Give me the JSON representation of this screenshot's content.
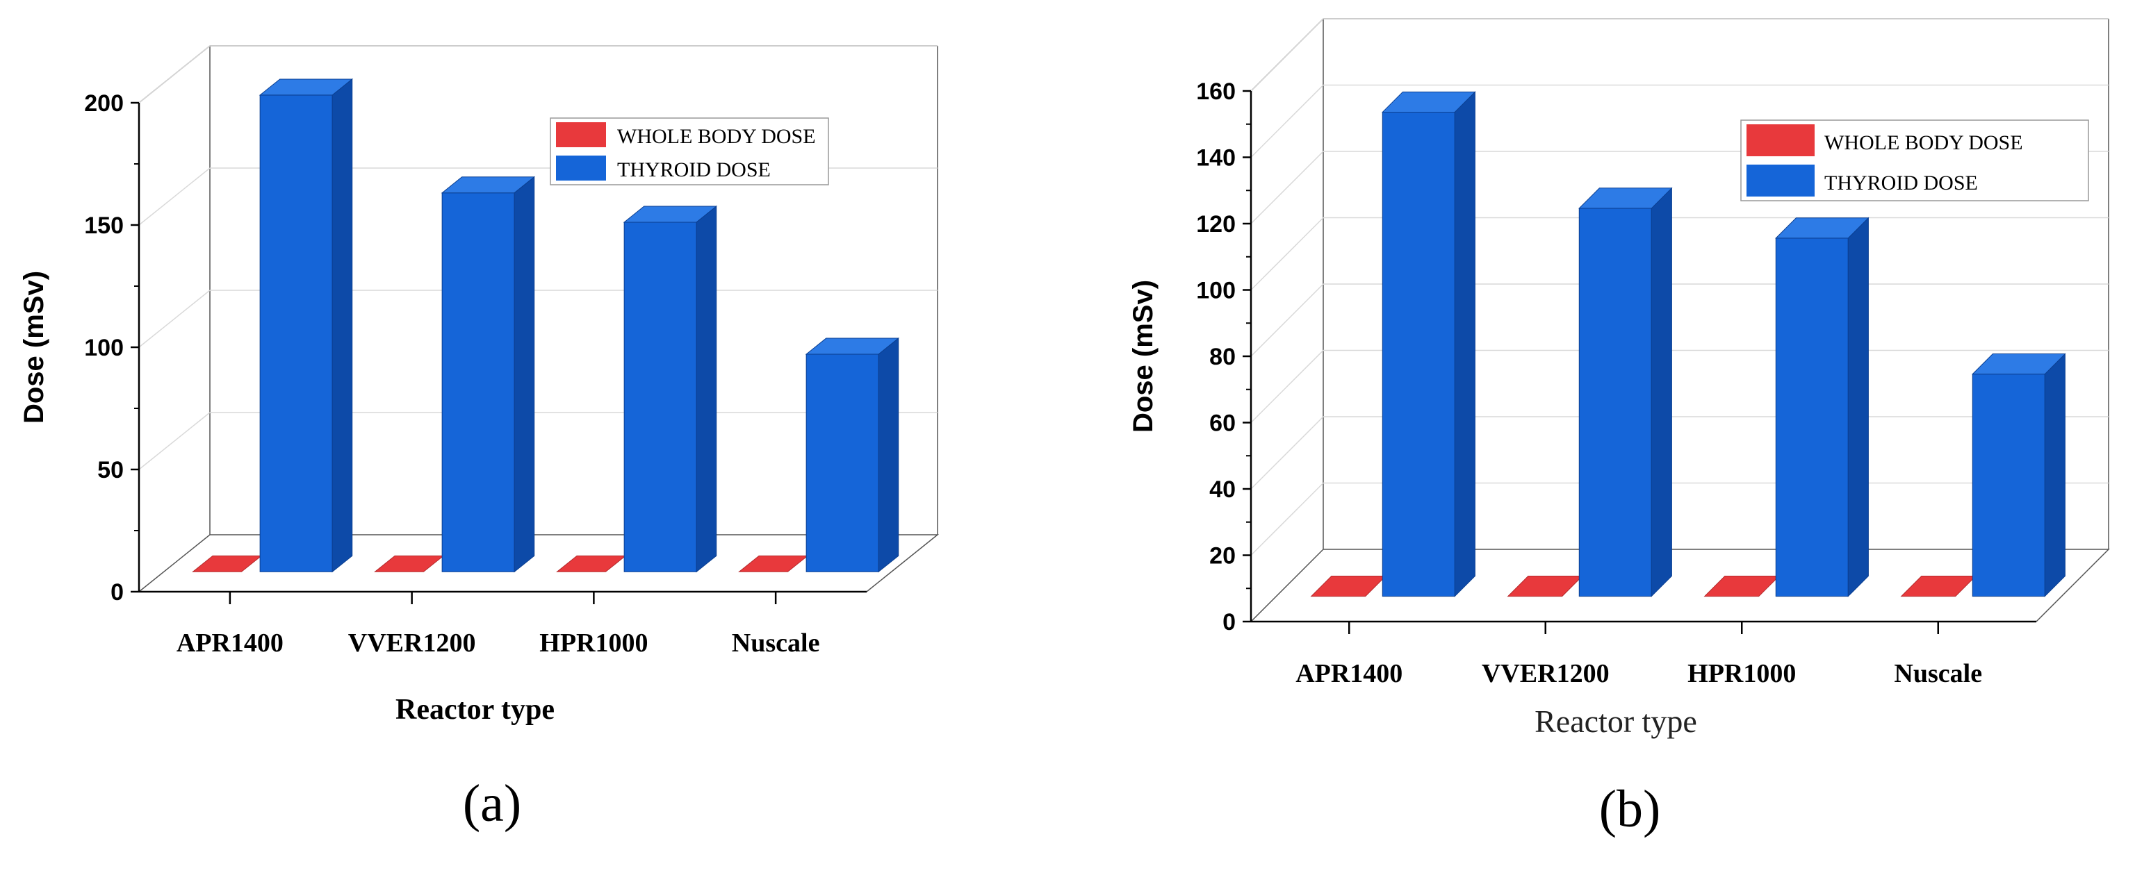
{
  "colors": {
    "whole_body": "#e8393c",
    "thyroid": "#1565d8",
    "thyroid_side": "#0d4aa8",
    "thyroid_top": "#2d7be6",
    "grid": "#d9d9d9",
    "axis": "#000000"
  },
  "chart_data": [
    {
      "type": "bar",
      "panel_label": "(a)",
      "categories": [
        "APR1400",
        "VVER1200",
        "HPR1000",
        "Nuscale"
      ],
      "series": [
        {
          "name": "WHOLE BODY DOSE",
          "values": [
            0,
            0,
            0,
            0
          ]
        },
        {
          "name": "THYROID DOSE",
          "values": [
            195,
            155,
            143,
            89
          ]
        }
      ],
      "xlabel": "Reactor type",
      "ylabel": "Dose (mSv)",
      "ylim": [
        0,
        200
      ],
      "yticks": [
        "0",
        "50",
        "100",
        "150",
        "200"
      ],
      "grid": true,
      "legend_position": "top-right"
    },
    {
      "type": "bar",
      "panel_label": "(b)",
      "categories": [
        "APR1400",
        "VVER1200",
        "HPR1000",
        "Nuscale"
      ],
      "series": [
        {
          "name": "WHOLE BODY DOSE",
          "values": [
            0,
            0,
            0,
            0
          ]
        },
        {
          "name": "THYROID DOSE",
          "values": [
            146,
            117,
            108,
            67
          ]
        }
      ],
      "xlabel": "Reactor type",
      "ylabel": "Dose (mSv)",
      "ylim": [
        0,
        160
      ],
      "yticks": [
        "0",
        "20",
        "40",
        "60",
        "80",
        "100",
        "120",
        "140",
        "160"
      ],
      "grid": true,
      "legend_position": "top-right"
    }
  ]
}
